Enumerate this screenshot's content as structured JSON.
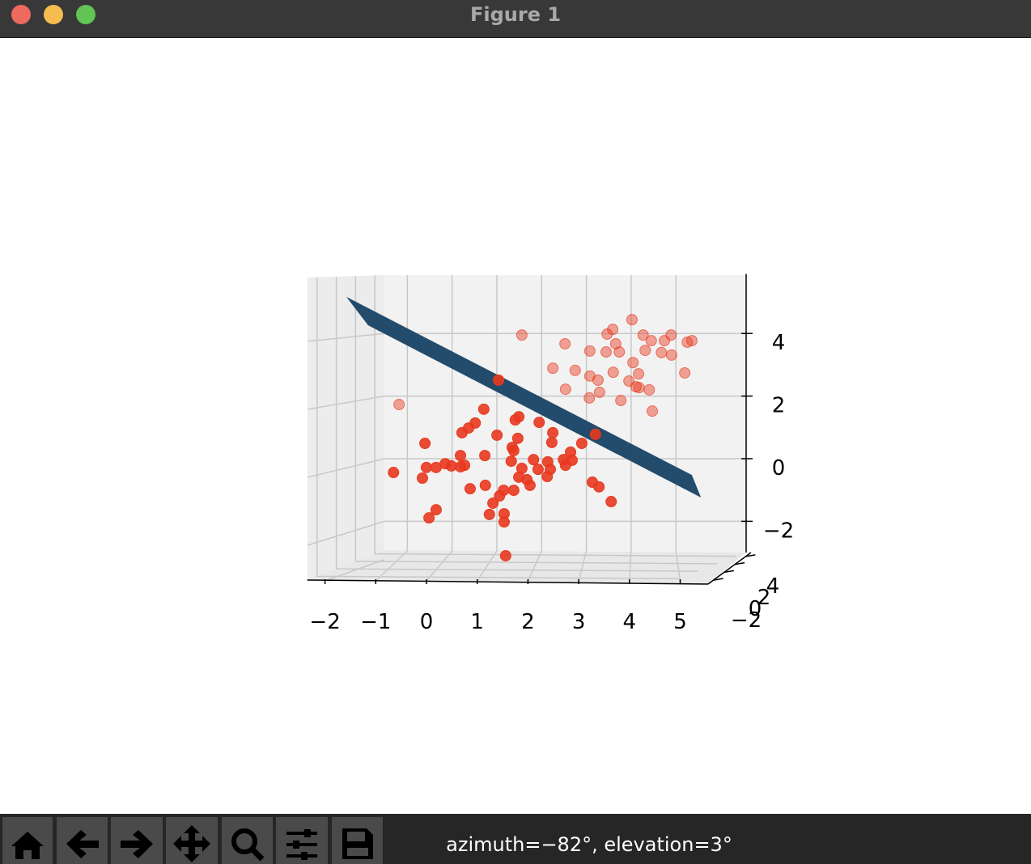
{
  "window": {
    "title": "Figure 1",
    "status": "azimuth=−82°, elevation=3°"
  },
  "chart_data": {
    "type": "scatter3d",
    "xlim": [
      -2.35,
      5.55
    ],
    "zlim": [
      -3.8,
      5.9
    ],
    "ylim": [
      -3,
      5
    ],
    "xticks": [
      {
        "value": -2,
        "label": "−2"
      },
      {
        "value": -1,
        "label": "−1"
      },
      0,
      1,
      2,
      3,
      4,
      5
    ],
    "zticks": [
      {
        "value": -2,
        "label": "−2"
      },
      0,
      2,
      4
    ],
    "yticks": [
      {
        "value": -2,
        "label": "−2"
      },
      0,
      2,
      4
    ],
    "grid": true,
    "plane": {
      "color": "#234b6b",
      "x": [
        -1.58,
        -1.15,
        5.41,
        5.23
      ],
      "z": [
        5.17,
        4.26,
        -1.24,
        -0.52
      ]
    },
    "series": [
      {
        "color": "#e8391f",
        "alpha": 0.45,
        "x": [
          1.88,
          2.73,
          4.05,
          3.67,
          3.56,
          4.27,
          4.82,
          4.43,
          4.69,
          5.23,
          5.14,
          3.73,
          3.54,
          3.8,
          3.22,
          4.31,
          4.63,
          4.83,
          2.49,
          2.93,
          3.68,
          4.18,
          5.09,
          3.22,
          3.38,
          3.99,
          2.74,
          4.13,
          4.19,
          4.39,
          3.41,
          3.21,
          3.83,
          4.45,
          -0.54,
          4.07
        ],
        "z": [
          3.95,
          3.67,
          4.44,
          4.13,
          3.98,
          3.95,
          3.95,
          3.77,
          3.77,
          3.77,
          3.72,
          3.67,
          3.41,
          3.41,
          3.44,
          3.46,
          3.39,
          3.31,
          2.89,
          2.82,
          2.76,
          2.71,
          2.74,
          2.64,
          2.51,
          2.48,
          2.22,
          2.3,
          2.27,
          2.2,
          2.12,
          1.94,
          1.86,
          1.52,
          1.73,
          3.07
        ]
      },
      {
        "color": "#e8391f",
        "alpha": 0.9,
        "x": [
          1.42,
          1.13,
          0.96,
          0.83,
          0.7,
          1.75,
          1.82,
          2.22,
          2.49,
          1.39,
          1.8,
          -0.03,
          3.33,
          3.06,
          2.47,
          1.69,
          1.72,
          2.84,
          0.67,
          1.15,
          1.67,
          2.11,
          2.7,
          2.87,
          2.39,
          0.37,
          0.49,
          0.75,
          0.67,
          0.19,
          0.0,
          -0.65,
          1.88,
          2.2,
          2.44,
          2.74,
          2.38,
          1.82,
          1.98,
          -0.08,
          2.04,
          1.16,
          0.86,
          1.52,
          1.72,
          3.27,
          3.4,
          1.44,
          1.31,
          3.64,
          0.19,
          0.05,
          1.24,
          1.53,
          1.53,
          1.56
        ],
        "z": [
          2.51,
          1.58,
          1.14,
          0.98,
          0.83,
          1.24,
          1.34,
          1.16,
          0.83,
          0.75,
          0.65,
          0.49,
          0.78,
          0.49,
          0.52,
          0.36,
          0.26,
          0.21,
          0.1,
          0.1,
          -0.08,
          -0.03,
          -0.03,
          -0.05,
          -0.1,
          -0.16,
          -0.23,
          -0.21,
          -0.26,
          -0.28,
          -0.28,
          -0.44,
          -0.31,
          -0.34,
          -0.34,
          -0.21,
          -0.57,
          -0.59,
          -0.67,
          -0.62,
          -0.85,
          -0.85,
          -0.96,
          -1.01,
          -1.01,
          -0.75,
          -0.9,
          -1.19,
          -1.42,
          -1.37,
          -1.63,
          -1.89,
          -1.78,
          -1.76,
          -2.02,
          -3.1
        ]
      }
    ]
  }
}
